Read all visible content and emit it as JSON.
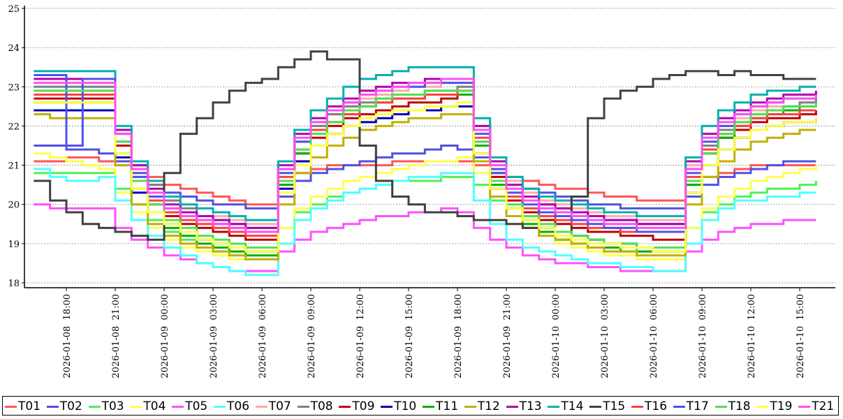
{
  "chart_data": {
    "type": "line",
    "title": "",
    "xlabel": "",
    "ylabel": "",
    "ylim": [
      18,
      25
    ],
    "yticks": [
      18,
      19,
      20,
      21,
      22,
      23,
      24,
      25
    ],
    "grid": "horizontal dotted",
    "legend_position": "bottom",
    "x_tick_labels": [
      "2026-01-08  18:00",
      "2026-01-08  21:00",
      "2026-01-09  00:00",
      "2026-01-09  03:00",
      "2026-01-09  06:00",
      "2026-01-09  09:00",
      "2026-01-09  12:00",
      "2026-01-09  15:00",
      "2026-01-09  18:00",
      "2026-01-09  21:00",
      "2026-01-10  00:00",
      "2026-01-10  03:00",
      "2026-01-10  06:00",
      "2026-01-10  09:00",
      "2026-01-10  12:00",
      "2026-01-10  15:00"
    ],
    "x_hours": [
      0,
      1,
      2,
      3,
      4,
      5,
      6,
      7,
      8,
      9,
      10,
      11,
      12,
      13,
      14,
      15,
      16,
      17,
      18,
      19,
      20,
      21,
      22,
      23,
      24,
      25,
      26,
      27,
      28,
      29,
      30,
      31,
      32,
      33,
      34,
      35,
      36,
      37,
      38,
      39,
      40,
      41,
      42,
      43,
      44,
      45,
      46,
      47,
      48
    ],
    "series": [
      {
        "name": "T01",
        "color": "#ff5555",
        "values": [
          21.1,
          21.1,
          21.2,
          21.2,
          21.1,
          21.0,
          20.9,
          20.7,
          20.5,
          20.4,
          20.3,
          20.2,
          20.1,
          20.0,
          20.0,
          20.5,
          20.8,
          20.9,
          21.0,
          21.0,
          21.0,
          21.0,
          21.1,
          21.1,
          21.1,
          21.1,
          21.1,
          21.0,
          20.8,
          20.7,
          20.6,
          20.5,
          20.4,
          20.4,
          20.3,
          20.2,
          20.2,
          20.1,
          20.1,
          20.1,
          20.5,
          20.7,
          20.8,
          20.9,
          21.0,
          21.0,
          21.0,
          21.0,
          21.0
        ]
      },
      {
        "name": "T02",
        "color": "#5050e0",
        "values": [
          21.5,
          21.5,
          21.4,
          21.4,
          21.3,
          21.1,
          20.8,
          20.5,
          20.3,
          20.2,
          20.1,
          20.0,
          20.0,
          19.9,
          19.9,
          20.2,
          20.6,
          20.8,
          20.9,
          21.0,
          21.1,
          21.2,
          21.3,
          21.3,
          21.4,
          21.5,
          21.4,
          21.2,
          20.9,
          20.6,
          20.4,
          20.3,
          20.2,
          20.1,
          20.0,
          20.0,
          19.9,
          19.9,
          19.9,
          19.9,
          20.2,
          20.5,
          20.7,
          20.8,
          20.9,
          21.0,
          21.1,
          21.1,
          21.1
        ]
      },
      {
        "name": "T03",
        "color": "#50f050",
        "values": [
          20.8,
          20.8,
          20.8,
          20.8,
          20.8,
          20.4,
          20.0,
          19.6,
          19.3,
          19.1,
          18.9,
          18.8,
          18.8,
          18.8,
          18.8,
          19.4,
          19.8,
          20.0,
          20.2,
          20.3,
          20.4,
          20.5,
          20.6,
          20.6,
          20.6,
          20.7,
          20.7,
          20.5,
          20.1,
          19.7,
          19.4,
          19.2,
          19.1,
          19.0,
          18.9,
          18.9,
          18.9,
          18.8,
          18.8,
          18.8,
          19.4,
          19.8,
          20.0,
          20.2,
          20.3,
          20.4,
          20.4,
          20.5,
          20.6
        ]
      },
      {
        "name": "T04",
        "color": "#ffff50",
        "values": [
          21.3,
          21.2,
          21.1,
          21.0,
          20.9,
          20.3,
          19.8,
          19.4,
          19.1,
          18.9,
          18.8,
          18.7,
          18.6,
          18.6,
          18.6,
          19.4,
          19.9,
          20.2,
          20.4,
          20.6,
          20.7,
          20.8,
          20.9,
          21.0,
          21.1,
          21.1,
          21.2,
          20.8,
          20.2,
          19.7,
          19.4,
          19.2,
          19.0,
          18.9,
          18.8,
          18.7,
          18.7,
          18.6,
          18.6,
          18.6,
          19.4,
          19.9,
          20.2,
          20.4,
          20.6,
          20.7,
          20.8,
          20.9,
          21.0
        ]
      },
      {
        "name": "T05",
        "color": "#ff50ff",
        "values": [
          20.0,
          19.9,
          19.9,
          19.9,
          19.9,
          19.4,
          19.1,
          18.9,
          18.7,
          18.6,
          18.5,
          18.4,
          18.3,
          18.3,
          18.3,
          18.8,
          19.1,
          19.3,
          19.4,
          19.5,
          19.6,
          19.7,
          19.7,
          19.8,
          19.8,
          19.9,
          19.8,
          19.4,
          19.1,
          18.9,
          18.7,
          18.6,
          18.5,
          18.5,
          18.4,
          18.4,
          18.3,
          18.3,
          18.3,
          18.3,
          18.8,
          19.1,
          19.3,
          19.4,
          19.5,
          19.5,
          19.6,
          19.6,
          19.6
        ]
      },
      {
        "name": "T06",
        "color": "#50ffff",
        "values": [
          20.9,
          20.7,
          20.6,
          20.6,
          20.7,
          20.1,
          19.6,
          19.2,
          18.9,
          18.7,
          18.5,
          18.4,
          18.3,
          18.2,
          18.2,
          19.0,
          19.6,
          19.9,
          20.1,
          20.3,
          20.4,
          20.5,
          20.6,
          20.7,
          20.7,
          20.8,
          20.8,
          20.1,
          19.5,
          19.1,
          18.9,
          18.8,
          18.7,
          18.6,
          18.5,
          18.5,
          18.4,
          18.4,
          18.3,
          18.3,
          19.0,
          19.6,
          19.9,
          20.1,
          20.1,
          20.2,
          20.2,
          20.3,
          20.3
        ]
      },
      {
        "name": "T07",
        "color": "#ffaaaa",
        "values": [
          22.9,
          22.9,
          22.9,
          22.9,
          22.9,
          21.8,
          21.0,
          20.5,
          20.2,
          20.0,
          19.9,
          19.7,
          19.6,
          19.5,
          19.5,
          20.9,
          21.6,
          22.0,
          22.3,
          22.5,
          22.7,
          22.8,
          22.9,
          23.0,
          23.0,
          23.1,
          23.1,
          22.0,
          21.1,
          20.6,
          20.3,
          20.1,
          20.0,
          19.9,
          19.8,
          19.7,
          19.7,
          19.6,
          19.6,
          19.6,
          21.0,
          21.6,
          22.0,
          22.2,
          22.4,
          22.5,
          22.5,
          22.6,
          22.6
        ]
      },
      {
        "name": "T08",
        "color": "#808080",
        "values": [
          23.0,
          23.0,
          23.0,
          23.0,
          23.0,
          21.8,
          21.0,
          20.5,
          20.1,
          19.9,
          19.7,
          19.6,
          19.5,
          19.4,
          19.4,
          20.9,
          21.6,
          22.0,
          22.3,
          22.5,
          22.6,
          22.7,
          22.8,
          22.8,
          22.9,
          22.9,
          23.0,
          21.9,
          21.0,
          20.5,
          20.2,
          20.0,
          19.9,
          19.8,
          19.7,
          19.6,
          19.6,
          19.5,
          19.5,
          19.5,
          20.9,
          21.5,
          21.9,
          22.1,
          22.3,
          22.4,
          22.5,
          22.6,
          22.7
        ]
      },
      {
        "name": "T09",
        "color": "#c00000",
        "values": [
          22.7,
          22.7,
          22.7,
          22.7,
          22.7,
          21.5,
          20.6,
          20.0,
          19.7,
          19.5,
          19.4,
          19.3,
          19.2,
          19.1,
          19.1,
          20.6,
          21.3,
          21.7,
          22.0,
          22.2,
          22.3,
          22.4,
          22.5,
          22.6,
          22.6,
          22.7,
          22.8,
          21.6,
          20.7,
          20.1,
          19.8,
          19.6,
          19.5,
          19.4,
          19.3,
          19.3,
          19.2,
          19.2,
          19.1,
          19.1,
          20.6,
          21.3,
          21.7,
          21.9,
          22.1,
          22.2,
          22.2,
          22.3,
          22.4
        ]
      },
      {
        "name": "T10",
        "color": "#0000b0",
        "values": [
          22.4,
          22.4,
          22.4,
          22.4,
          22.4,
          21.2,
          20.3,
          19.8,
          19.5,
          19.3,
          19.1,
          19.0,
          18.9,
          18.8,
          18.8,
          20.4,
          21.1,
          21.5,
          21.8,
          22.0,
          22.1,
          22.2,
          22.3,
          22.4,
          22.4,
          22.5,
          22.5,
          21.3,
          20.4,
          19.9,
          19.6,
          19.4,
          19.3,
          19.2,
          19.1,
          19.0,
          19.0,
          18.9,
          18.9,
          18.9,
          20.3,
          21.0,
          21.4,
          21.7,
          21.9,
          22.0,
          22.1,
          22.1,
          22.2
        ]
      },
      {
        "name": "T11",
        "color": "#00b000",
        "values": [
          22.6,
          22.6,
          22.6,
          22.6,
          22.6,
          21.3,
          20.4,
          19.8,
          19.4,
          19.2,
          19.0,
          18.9,
          18.8,
          18.7,
          18.7,
          20.5,
          21.3,
          21.8,
          22.1,
          22.3,
          22.5,
          22.6,
          22.7,
          22.7,
          22.8,
          22.8,
          22.8,
          21.5,
          20.5,
          19.9,
          19.5,
          19.3,
          19.1,
          19.0,
          18.9,
          18.9,
          18.8,
          18.8,
          18.8,
          18.8,
          20.5,
          21.3,
          21.7,
          22.0,
          22.2,
          22.3,
          22.4,
          22.5,
          22.5
        ]
      },
      {
        "name": "T12",
        "color": "#c0b000",
        "values": [
          22.3,
          22.2,
          22.2,
          22.2,
          22.2,
          21.0,
          20.0,
          19.5,
          19.2,
          19.0,
          18.9,
          18.8,
          18.7,
          18.6,
          18.6,
          20.0,
          20.8,
          21.2,
          21.5,
          21.7,
          21.9,
          22.0,
          22.1,
          22.2,
          22.2,
          22.3,
          22.3,
          21.1,
          20.2,
          19.7,
          19.4,
          19.2,
          19.1,
          19.0,
          18.9,
          18.8,
          18.8,
          18.7,
          18.7,
          18.7,
          20.0,
          20.7,
          21.1,
          21.4,
          21.6,
          21.7,
          21.8,
          21.9,
          21.9
        ]
      },
      {
        "name": "T13",
        "color": "#b000b0",
        "values": [
          23.2,
          23.2,
          23.2,
          23.2,
          23.2,
          21.9,
          21.0,
          20.4,
          20.0,
          19.8,
          19.7,
          19.6,
          19.5,
          19.4,
          19.4,
          21.0,
          21.8,
          22.2,
          22.5,
          22.7,
          22.9,
          23.0,
          23.1,
          23.1,
          23.2,
          23.2,
          23.2,
          22.0,
          21.1,
          20.5,
          20.2,
          20.0,
          19.9,
          19.8,
          19.7,
          19.6,
          19.6,
          19.5,
          19.5,
          19.5,
          21.1,
          21.8,
          22.2,
          22.4,
          22.6,
          22.7,
          22.8,
          22.8,
          22.9
        ]
      },
      {
        "name": "T14",
        "color": "#00b0b0",
        "values": [
          23.4,
          23.4,
          23.4,
          23.4,
          23.4,
          22.0,
          21.1,
          20.6,
          20.2,
          20.0,
          19.9,
          19.8,
          19.7,
          19.6,
          19.6,
          21.1,
          21.9,
          22.4,
          22.7,
          23.0,
          23.2,
          23.3,
          23.4,
          23.5,
          23.5,
          23.5,
          23.5,
          22.2,
          21.2,
          20.7,
          20.4,
          20.2,
          20.1,
          20.0,
          19.9,
          19.8,
          19.8,
          19.7,
          19.7,
          19.7,
          21.2,
          22.0,
          22.4,
          22.6,
          22.8,
          22.9,
          22.9,
          23.0,
          23.0
        ]
      },
      {
        "name": "T15",
        "color": "#404040",
        "values": [
          20.6,
          20.1,
          19.8,
          19.5,
          19.4,
          19.3,
          19.2,
          19.1,
          20.8,
          21.8,
          22.2,
          22.6,
          22.9,
          23.1,
          23.2,
          23.5,
          23.7,
          23.9,
          23.7,
          23.7,
          21.5,
          20.6,
          20.2,
          20.0,
          19.8,
          19.8,
          19.7,
          19.6,
          19.6,
          19.5,
          19.4,
          19.4,
          19.3,
          20.2,
          22.2,
          22.7,
          22.9,
          23.0,
          23.2,
          23.3,
          23.4,
          23.4,
          23.3,
          23.4,
          23.3,
          23.3,
          23.2,
          23.2,
          23.2
        ]
      },
      {
        "name": "T16",
        "color": "#ff4040",
        "values": [
          22.8,
          22.8,
          22.8,
          22.8,
          22.8,
          21.6,
          20.7,
          20.1,
          19.8,
          19.6,
          19.5,
          19.4,
          19.3,
          19.2,
          19.2,
          20.7,
          21.4,
          21.9,
          22.1,
          22.3,
          22.5,
          22.6,
          22.7,
          22.7,
          22.8,
          22.8,
          22.9,
          21.7,
          20.8,
          20.2,
          19.9,
          19.7,
          19.6,
          19.5,
          19.4,
          19.4,
          19.3,
          19.3,
          19.3,
          19.3,
          20.7,
          21.4,
          21.8,
          22.0,
          22.2,
          22.3,
          22.3,
          22.4,
          22.4
        ]
      },
      {
        "name": "T17",
        "color": "#5050f0",
        "values": [
          23.3,
          23.3,
          21.5,
          23.2,
          23.2,
          21.6,
          20.7,
          20.2,
          19.9,
          19.7,
          19.6,
          19.5,
          19.4,
          19.3,
          19.3,
          20.8,
          21.6,
          22.1,
          22.4,
          22.6,
          22.8,
          22.9,
          23.0,
          23.0,
          23.1,
          23.1,
          23.1,
          21.8,
          20.8,
          20.3,
          20.0,
          19.8,
          19.7,
          19.6,
          19.5,
          19.4,
          19.4,
          19.3,
          19.3,
          19.3,
          20.8,
          21.6,
          22.0,
          22.3,
          22.5,
          22.6,
          22.7,
          22.7,
          22.8
        ]
      },
      {
        "name": "T18",
        "color": "#50e050",
        "values": [
          22.9,
          22.9,
          22.9,
          22.9,
          22.9,
          21.6,
          20.6,
          20.0,
          19.6,
          19.4,
          19.2,
          19.1,
          19.0,
          18.9,
          18.9,
          20.6,
          21.4,
          21.8,
          22.1,
          22.4,
          22.5,
          22.7,
          22.8,
          22.8,
          22.9,
          22.9,
          22.9,
          21.6,
          20.6,
          20.0,
          19.7,
          19.5,
          19.3,
          19.2,
          19.1,
          19.0,
          19.0,
          18.9,
          18.9,
          18.9,
          20.6,
          21.3,
          21.8,
          22.1,
          22.3,
          22.4,
          22.5,
          22.5,
          22.6
        ]
      },
      {
        "name": "T19",
        "color": "#ffff40",
        "values": [
          22.6,
          22.6,
          22.6,
          22.6,
          22.6,
          21.3,
          20.4,
          19.8,
          19.5,
          19.3,
          19.1,
          19.0,
          18.9,
          18.8,
          18.8,
          20.3,
          21.0,
          21.5,
          21.8,
          22.0,
          22.2,
          22.3,
          22.4,
          22.4,
          22.5,
          22.5,
          22.6,
          21.3,
          20.4,
          19.9,
          19.6,
          19.4,
          19.2,
          19.1,
          19.0,
          19.0,
          18.9,
          18.9,
          18.8,
          18.8,
          20.3,
          21.0,
          21.4,
          21.7,
          21.9,
          22.0,
          22.1,
          22.1,
          22.2
        ]
      },
      {
        "name": "T21",
        "color": "#ff50f0",
        "values": [
          23.1,
          23.1,
          23.1,
          23.1,
          23.1,
          21.8,
          20.9,
          20.3,
          19.9,
          19.7,
          19.6,
          19.5,
          19.4,
          19.3,
          19.3,
          20.9,
          21.7,
          22.1,
          22.4,
          22.6,
          22.8,
          22.9,
          23.0,
          23.1,
          23.1,
          23.2,
          23.2,
          21.9,
          21.0,
          20.4,
          20.1,
          19.9,
          19.8,
          19.7,
          19.6,
          19.5,
          19.5,
          19.4,
          19.4,
          19.4,
          20.9,
          21.7,
          22.1,
          22.3,
          22.5,
          22.6,
          22.7,
          22.7,
          22.8
        ]
      }
    ]
  }
}
